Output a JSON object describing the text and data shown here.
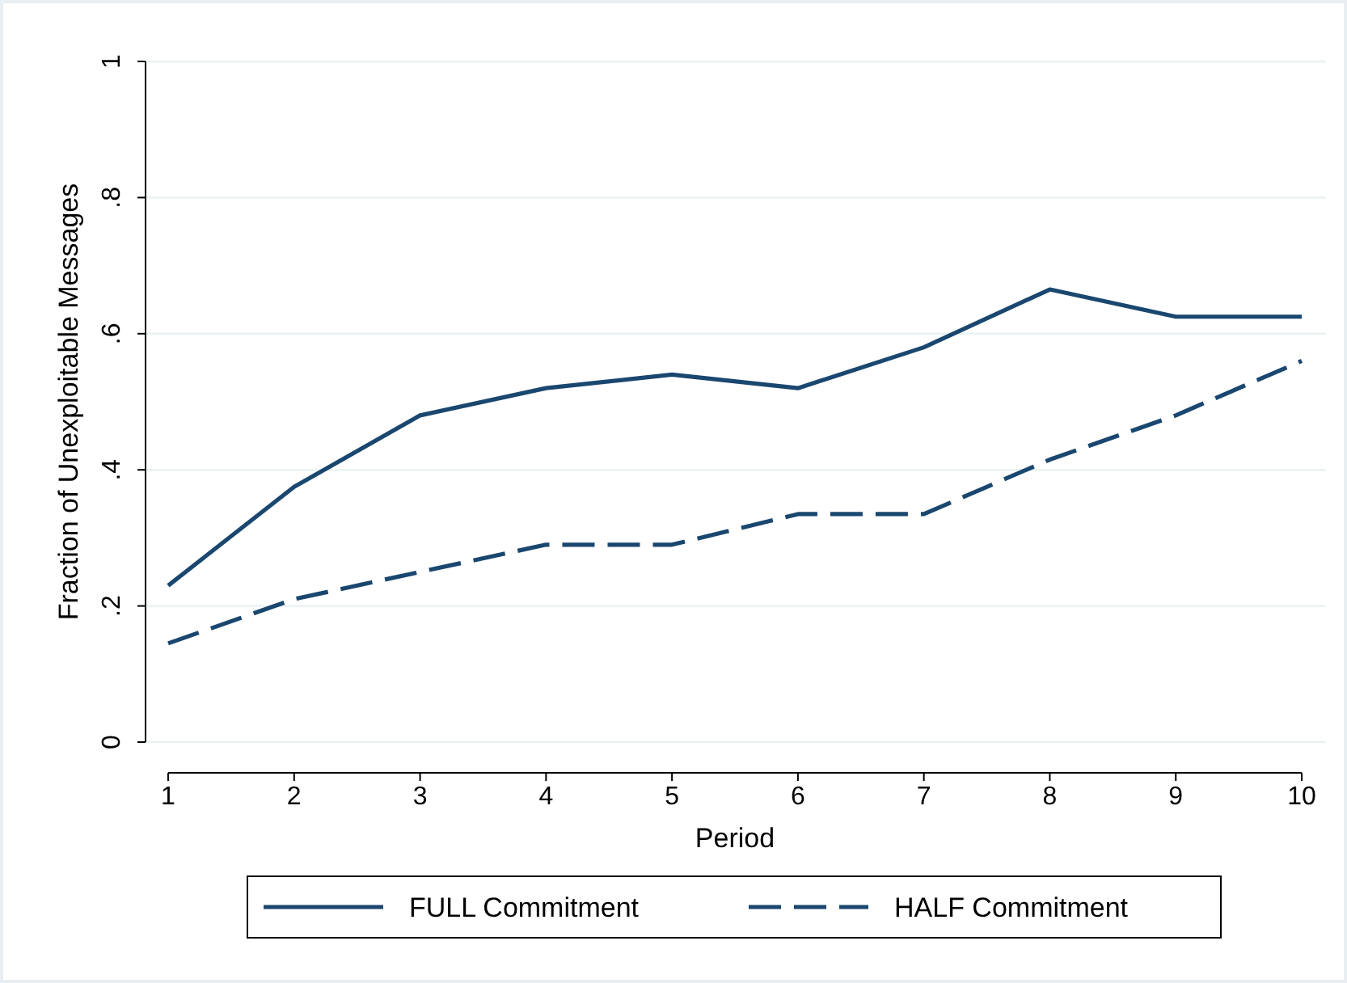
{
  "chart_data": {
    "type": "line",
    "xlabel": "Period",
    "ylabel": "Fraction of Unexploitable Messages",
    "x": [
      1,
      2,
      3,
      4,
      5,
      6,
      7,
      8,
      9,
      10
    ],
    "xlim": [
      1,
      10
    ],
    "xticks": [
      1,
      2,
      3,
      4,
      5,
      6,
      7,
      8,
      9,
      10
    ],
    "ylim": [
      0,
      1
    ],
    "yticks": [
      {
        "value": 0,
        "label": "0"
      },
      {
        "value": 0.2,
        "label": ".2"
      },
      {
        "value": 0.4,
        "label": ".4"
      },
      {
        "value": 0.6,
        "label": ".6"
      },
      {
        "value": 0.8,
        "label": ".8"
      },
      {
        "value": 1,
        "label": "1"
      }
    ],
    "grid": "y",
    "legend": "bottom",
    "series": [
      {
        "name": "FULL Commitment",
        "color": "#1a476f",
        "line_style": "solid",
        "values": [
          0.23,
          0.375,
          0.48,
          0.52,
          0.54,
          0.52,
          0.58,
          0.665,
          0.625,
          0.625
        ]
      },
      {
        "name": "HALF Commitment",
        "color": "#1a476f",
        "line_style": "dashed",
        "values": [
          0.145,
          0.21,
          0.25,
          0.29,
          0.29,
          0.335,
          0.335,
          0.415,
          0.48,
          0.56
        ]
      }
    ]
  }
}
